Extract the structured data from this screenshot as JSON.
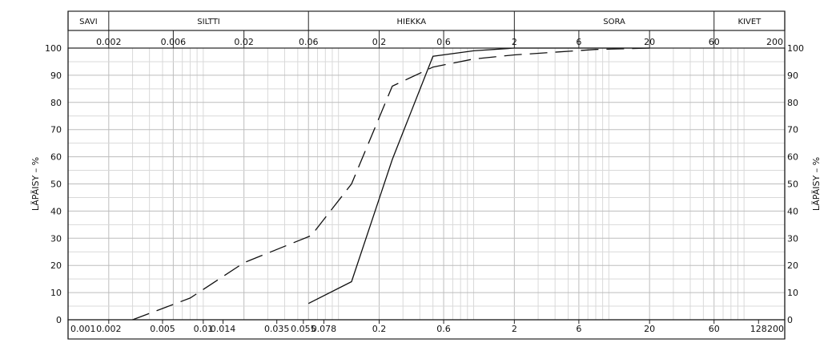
{
  "chart_data": {
    "type": "line",
    "x_scale": "log",
    "xlim": [
      0.001,
      200
    ],
    "ylim": [
      0,
      100
    ],
    "grid": true,
    "ylabel_left": "LÄPÄISY – %",
    "ylabel_right": "LÄPÄISY – %",
    "fraction_bands": [
      {
        "label": "SAVI",
        "from": 0.001,
        "to": 0.002
      },
      {
        "label": "SILTTI",
        "from": 0.002,
        "to": 0.06
      },
      {
        "label": "HIEKKA",
        "from": 0.06,
        "to": 2
      },
      {
        "label": "SORA",
        "from": 2,
        "to": 60
      },
      {
        "label": "KIVET",
        "from": 60,
        "to": 200
      }
    ],
    "top_ticks": [
      {
        "label": "0.002",
        "x": 0.002
      },
      {
        "label": "0.006",
        "x": 0.006
      },
      {
        "label": "0.02",
        "x": 0.02
      },
      {
        "label": "0.06",
        "x": 0.06
      },
      {
        "label": "0.2",
        "x": 0.2
      },
      {
        "label": "0.6",
        "x": 0.6
      },
      {
        "label": "2",
        "x": 2
      },
      {
        "label": "6",
        "x": 6
      },
      {
        "label": "20",
        "x": 20
      },
      {
        "label": "60",
        "x": 60
      },
      {
        "label": "200",
        "x": 200
      }
    ],
    "bottom_ticks": [
      {
        "label": "0.001",
        "x": 0.001
      },
      {
        "label": "0.002",
        "x": 0.002
      },
      {
        "label": "0.005",
        "x": 0.005
      },
      {
        "label": "0.01",
        "x": 0.01
      },
      {
        "label": "0.014",
        "x": 0.014
      },
      {
        "label": "0.035",
        "x": 0.035
      },
      {
        "label": "0.055",
        "x": 0.055
      },
      {
        "label": "0.078",
        "x": 0.078
      },
      {
        "label": "0.2",
        "x": 0.2
      },
      {
        "label": "0.6",
        "x": 0.6
      },
      {
        "label": "2",
        "x": 2
      },
      {
        "label": "6",
        "x": 6
      },
      {
        "label": "20",
        "x": 20
      },
      {
        "label": "60",
        "x": 60
      },
      {
        "label": "128",
        "x": 128
      },
      {
        "label": "200",
        "x": 200
      }
    ],
    "y_ticks": [
      0,
      10,
      20,
      30,
      40,
      50,
      60,
      70,
      80,
      90,
      100
    ],
    "minor_x_grid": [
      0.003,
      0.004,
      0.005,
      0.007,
      0.008,
      0.009,
      0.01,
      0.03,
      0.04,
      0.05,
      0.07,
      0.08,
      0.09,
      0.1,
      0.3,
      0.4,
      0.5,
      0.7,
      0.8,
      0.9,
      1,
      3,
      4,
      5,
      7,
      8,
      9,
      10,
      30,
      40,
      50,
      70,
      80,
      90,
      100
    ],
    "series": [
      {
        "style": "solid",
        "x": [
          0.06,
          0.125,
          0.25,
          0.5,
          1,
          2,
          8,
          20
        ],
        "y": [
          6,
          14,
          59,
          97,
          99,
          100,
          100,
          100
        ]
      },
      {
        "style": "dashed",
        "x": [
          0.003,
          0.008,
          0.02,
          0.063,
          0.125,
          0.25,
          0.5,
          1,
          2,
          8,
          20
        ],
        "y": [
          0,
          8,
          21,
          31,
          50,
          86,
          93,
          96,
          97.5,
          99.5,
          100
        ]
      }
    ]
  }
}
